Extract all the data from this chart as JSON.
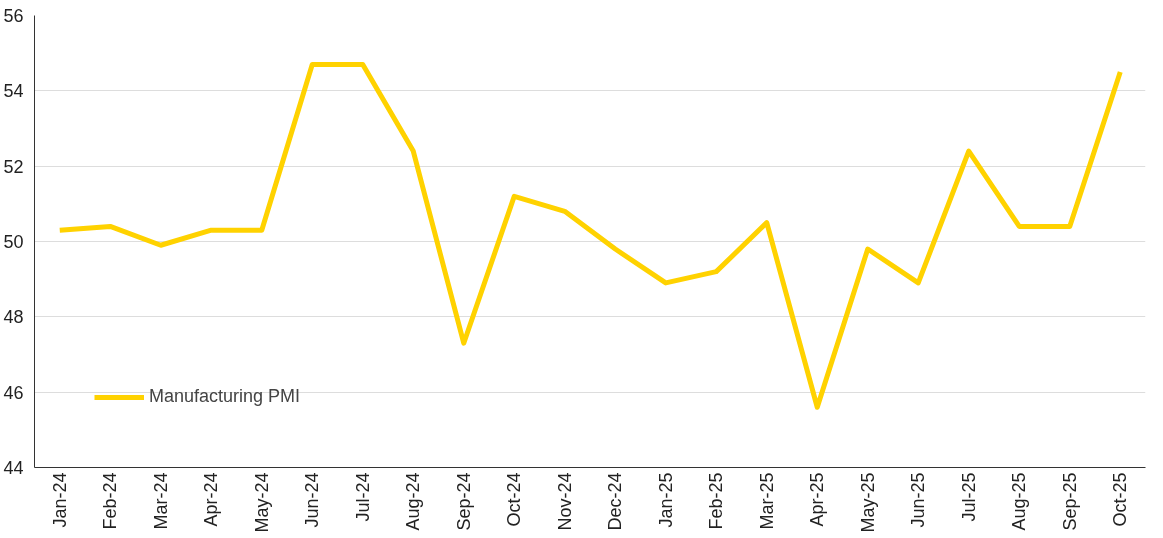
{
  "chart_data": {
    "type": "line",
    "categories": [
      "Jan-24",
      "Feb-24",
      "Mar-24",
      "Apr-24",
      "May-24",
      "Jun-24",
      "Jul-24",
      "Aug-24",
      "Sep-24",
      "Oct-24",
      "Nov-24",
      "Dec-24",
      "Jan-25",
      "Feb-25",
      "Mar-25",
      "Apr-25",
      "May-25",
      "Jun-25",
      "Jul-25",
      "Aug-25",
      "Sep-25",
      "Oct-25"
    ],
    "series": [
      {
        "name": "Manufacturing PMI",
        "color": "#ffd200",
        "values": [
          50.3,
          50.4,
          49.9,
          50.3,
          50.3,
          54.7,
          54.7,
          52.4,
          47.3,
          51.2,
          50.8,
          49.8,
          48.9,
          49.2,
          50.5,
          45.6,
          49.8,
          48.9,
          52.4,
          50.4,
          50.4,
          54.5
        ]
      }
    ],
    "ylim": [
      44,
      56
    ],
    "yticks": [
      44,
      46,
      48,
      50,
      52,
      54,
      56
    ],
    "grid": "y",
    "legend": "bottom left",
    "marker": "none",
    "line_style": "solid"
  }
}
